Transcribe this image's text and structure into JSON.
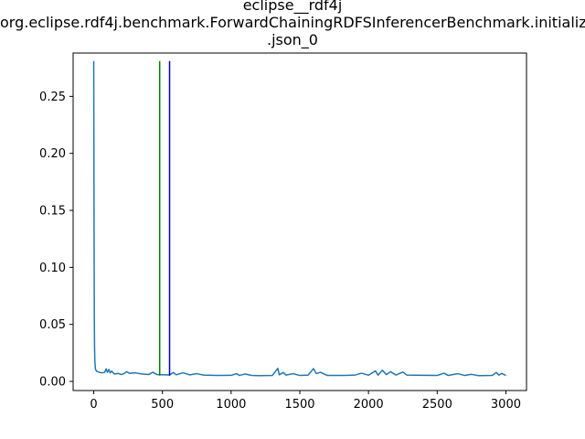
{
  "chart_data": {
    "type": "line",
    "title_lines": [
      "eclipse__rdf4j",
      "org.eclipse.rdf4j.benchmark.ForwardChainingRDFSInferencerBenchmark.initialize",
      ".json_0"
    ],
    "xlabel": "",
    "ylabel": "",
    "xlim": [
      -150,
      3150
    ],
    "ylim": [
      -0.008,
      0.288
    ],
    "x_ticks": [
      0,
      500,
      1000,
      1500,
      2000,
      2500,
      3000
    ],
    "x_tick_labels": [
      "0",
      "500",
      "1000",
      "1500",
      "2000",
      "2500",
      "3000"
    ],
    "y_ticks": [
      0.0,
      0.05,
      0.1,
      0.15,
      0.2,
      0.25
    ],
    "y_tick_labels": [
      "0.00",
      "0.05",
      "0.10",
      "0.15",
      "0.20",
      "0.25"
    ],
    "grid": false,
    "series": [
      {
        "color": "#1f77b4",
        "points": [
          [
            0,
            0.281
          ],
          [
            2,
            0.16
          ],
          [
            4,
            0.06
          ],
          [
            6,
            0.03
          ],
          [
            8,
            0.018
          ],
          [
            12,
            0.011
          ],
          [
            20,
            0.009
          ],
          [
            40,
            0.008
          ],
          [
            60,
            0.0075
          ],
          [
            80,
            0.008
          ],
          [
            90,
            0.011
          ],
          [
            100,
            0.008
          ],
          [
            110,
            0.0105
          ],
          [
            120,
            0.0075
          ],
          [
            130,
            0.009
          ],
          [
            150,
            0.0065
          ],
          [
            180,
            0.007
          ],
          [
            200,
            0.006
          ],
          [
            220,
            0.0068
          ],
          [
            240,
            0.0085
          ],
          [
            260,
            0.007
          ],
          [
            300,
            0.0075
          ],
          [
            350,
            0.0065
          ],
          [
            400,
            0.006
          ],
          [
            430,
            0.008
          ],
          [
            460,
            0.006
          ],
          [
            500,
            0.0058
          ],
          [
            550,
            0.0056
          ],
          [
            580,
            0.0078
          ],
          [
            600,
            0.0058
          ],
          [
            650,
            0.0076
          ],
          [
            700,
            0.0057
          ],
          [
            750,
            0.0068
          ],
          [
            800,
            0.0055
          ],
          [
            900,
            0.0052
          ],
          [
            1000,
            0.0053
          ],
          [
            1040,
            0.0068
          ],
          [
            1060,
            0.0052
          ],
          [
            1100,
            0.0065
          ],
          [
            1150,
            0.0052
          ],
          [
            1200,
            0.005
          ],
          [
            1300,
            0.0052
          ],
          [
            1340,
            0.0115
          ],
          [
            1350,
            0.0058
          ],
          [
            1380,
            0.0078
          ],
          [
            1400,
            0.0055
          ],
          [
            1450,
            0.0068
          ],
          [
            1500,
            0.0052
          ],
          [
            1560,
            0.0055
          ],
          [
            1600,
            0.0112
          ],
          [
            1620,
            0.0068
          ],
          [
            1650,
            0.008
          ],
          [
            1700,
            0.0052
          ],
          [
            1800,
            0.0052
          ],
          [
            1900,
            0.0055
          ],
          [
            1950,
            0.0072
          ],
          [
            2000,
            0.0054
          ],
          [
            2050,
            0.0092
          ],
          [
            2070,
            0.0055
          ],
          [
            2100,
            0.0098
          ],
          [
            2130,
            0.006
          ],
          [
            2160,
            0.0085
          ],
          [
            2200,
            0.0056
          ],
          [
            2250,
            0.0082
          ],
          [
            2280,
            0.0055
          ],
          [
            2400,
            0.0053
          ],
          [
            2500,
            0.0052
          ],
          [
            2550,
            0.0072
          ],
          [
            2580,
            0.0052
          ],
          [
            2650,
            0.0068
          ],
          [
            2700,
            0.0052
          ],
          [
            2750,
            0.0062
          ],
          [
            2800,
            0.005
          ],
          [
            2900,
            0.0052
          ],
          [
            2930,
            0.0078
          ],
          [
            2950,
            0.0055
          ],
          [
            2970,
            0.007
          ],
          [
            3000,
            0.0052
          ]
        ]
      }
    ],
    "vertical_lines": [
      {
        "x": 480,
        "color": "#008000",
        "y_range": [
          0.005,
          0.281
        ]
      },
      {
        "x": 552,
        "color": "#0000cc",
        "y_range": [
          0.005,
          0.281
        ]
      }
    ]
  }
}
